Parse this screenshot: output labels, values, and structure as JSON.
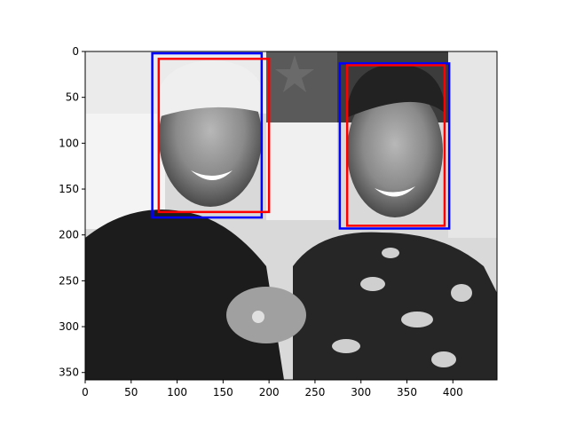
{
  "chart_data": {
    "type": "image",
    "title": "",
    "xlabel": "",
    "ylabel": "",
    "xlim": [
      0,
      448
    ],
    "ylim": [
      358,
      0
    ],
    "x_ticks": [
      0,
      50,
      100,
      150,
      200,
      250,
      300,
      350,
      400
    ],
    "y_ticks": [
      0,
      50,
      100,
      150,
      200,
      250,
      300,
      350
    ],
    "grid": false,
    "image": {
      "description_colors": [
        "#1a1a1a",
        "#f2f2f2"
      ]
    },
    "boxes": [
      {
        "name": "",
        "color": "#0000ff",
        "x0": 73,
        "y0": 2,
        "x1": 192,
        "y1": 181
      },
      {
        "name": "",
        "color": "#ff0000",
        "x0": 80,
        "y0": 8,
        "x1": 200,
        "y1": 175
      },
      {
        "name": "",
        "color": "#0000ff",
        "x0": 277,
        "y0": 13,
        "x1": 396,
        "y1": 193
      },
      {
        "name": "",
        "color": "#ff0000",
        "x0": 285,
        "y0": 15,
        "x1": 391,
        "y1": 190
      }
    ]
  }
}
